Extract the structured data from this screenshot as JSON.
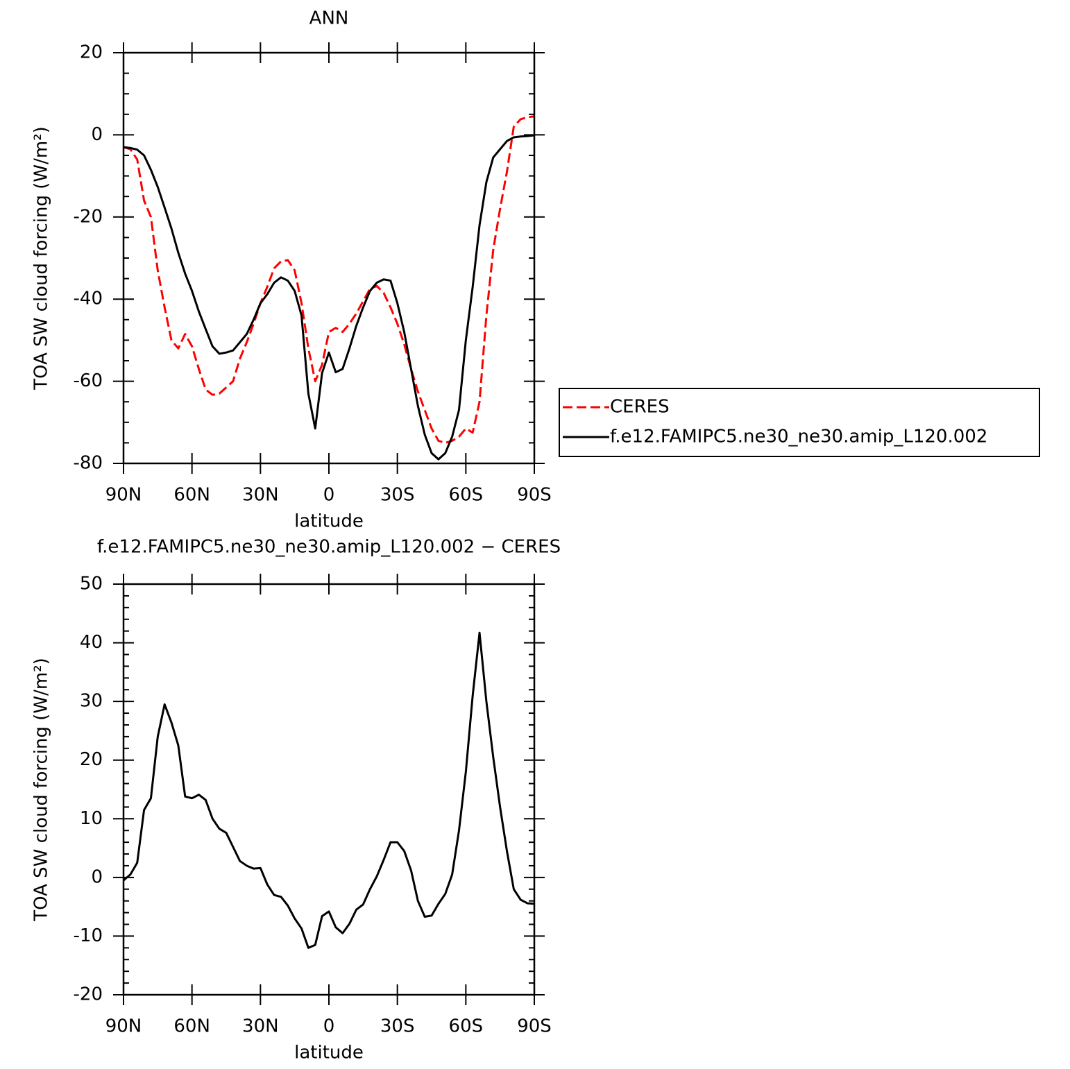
{
  "chart_data": [
    {
      "type": "line",
      "title": "ANN",
      "xlabel": "latitude",
      "ylabel": "TOA SW cloud forcing (W/m²)",
      "x": [
        90,
        87,
        84,
        81,
        78,
        75,
        72,
        69,
        66,
        63,
        60,
        57,
        54,
        51,
        48,
        45,
        42,
        39,
        36,
        33,
        30,
        27,
        24,
        21,
        18,
        15,
        12,
        9,
        6,
        3,
        0,
        -3,
        -6,
        -9,
        -12,
        -15,
        -18,
        -21,
        -24,
        -27,
        -30,
        -33,
        -36,
        -39,
        -42,
        -45,
        -48,
        -51,
        -54,
        -57,
        -60,
        -63,
        -66,
        -69,
        -72,
        -75,
        -78,
        -81,
        -84,
        -87,
        -90
      ],
      "xlim": [
        90,
        -90
      ],
      "xticks": [
        {
          "value": 90,
          "label": "90N"
        },
        {
          "value": 60,
          "label": "60N"
        },
        {
          "value": 30,
          "label": "30N"
        },
        0,
        {
          "value": -30,
          "label": "30S"
        },
        {
          "value": -60,
          "label": "60S"
        },
        {
          "value": -90,
          "label": "90S"
        }
      ],
      "ylim": [
        -80,
        20
      ],
      "yticks": [
        -80,
        -60,
        -40,
        -20,
        0,
        20
      ],
      "yminorticks": [
        -75,
        -70,
        -65,
        -55,
        -50,
        -45,
        -35,
        -30,
        -25,
        -15,
        -10,
        -5,
        5,
        10,
        15
      ],
      "legend": "outside right",
      "series": [
        {
          "name": "CERES",
          "color": "#ff0000",
          "dash": "dashed",
          "values": [
            -3,
            -3.5,
            -6,
            -16,
            -20,
            -33,
            -42,
            -50,
            -52,
            -48.5,
            -51.5,
            -57,
            -62,
            -63.3,
            -63,
            -61.5,
            -60,
            -54.5,
            -50.5,
            -46,
            -41,
            -37,
            -32.5,
            -30.8,
            -30.5,
            -33,
            -41,
            -52,
            -60,
            -56,
            -48,
            -47,
            -48,
            -46,
            -43.5,
            -40.5,
            -37.5,
            -36.8,
            -38.5,
            -42,
            -46,
            -51,
            -57,
            -62.5,
            -67,
            -71.5,
            -74.5,
            -75,
            -74.5,
            -73.5,
            -71.5,
            -72.5,
            -65,
            -44,
            -28,
            -18,
            -9,
            2,
            3.8,
            4.3,
            4.5
          ]
        },
        {
          "name": "f.e12.FAMIPC5.ne30_ne30.amip_L120.002",
          "color": "#000000",
          "dash": "solid",
          "values": [
            -3,
            -3.2,
            -3.6,
            -5,
            -8.5,
            -12.7,
            -17.7,
            -22.8,
            -28.7,
            -33.8,
            -38,
            -43,
            -47.3,
            -51.5,
            -53.3,
            -53,
            -52.5,
            -50.5,
            -48.5,
            -45,
            -41,
            -38.8,
            -36,
            -34.7,
            -35.5,
            -38,
            -44,
            -63,
            -71.5,
            -58,
            -53,
            -57.8,
            -57,
            -52,
            -46.5,
            -42,
            -38,
            -36,
            -35.2,
            -35.5,
            -41,
            -48,
            -57,
            -66,
            -73,
            -77.5,
            -79,
            -77.5,
            -73.5,
            -67,
            -50,
            -37,
            -22,
            -11.5,
            -5.5,
            -3.5,
            -1.5,
            -0.6,
            -0.4,
            -0.3,
            -0.1
          ]
        }
      ]
    },
    {
      "type": "line",
      "title": "f.e12.FAMIPC5.ne30_ne30.amip_L120.002 − CERES",
      "xlabel": "latitude",
      "ylabel": "TOA SW cloud forcing (W/m²)",
      "x": [
        90,
        87,
        84,
        81,
        78,
        75,
        72,
        69,
        66,
        63,
        60,
        57,
        54,
        51,
        48,
        45,
        42,
        39,
        36,
        33,
        30,
        27,
        24,
        21,
        18,
        15,
        12,
        9,
        6,
        3,
        0,
        -3,
        -6,
        -9,
        -12,
        -15,
        -18,
        -21,
        -24,
        -27,
        -30,
        -33,
        -36,
        -39,
        -42,
        -45,
        -48,
        -51,
        -54,
        -57,
        -60,
        -63,
        -66,
        -69,
        -72,
        -75,
        -78,
        -81,
        -84,
        -87,
        -90
      ],
      "xlim": [
        90,
        -90
      ],
      "xticks": [
        {
          "value": 90,
          "label": "90N"
        },
        {
          "value": 60,
          "label": "60N"
        },
        {
          "value": 30,
          "label": "30N"
        },
        0,
        {
          "value": -30,
          "label": "30S"
        },
        {
          "value": -60,
          "label": "60S"
        },
        {
          "value": -90,
          "label": "90S"
        }
      ],
      "ylim": [
        -20,
        50
      ],
      "yticks": [
        -20,
        -10,
        0,
        10,
        20,
        30,
        40,
        50
      ],
      "yminorticks": [
        -18,
        -16,
        -14,
        -12,
        -8,
        -6,
        -4,
        -2,
        2,
        4,
        6,
        8,
        12,
        14,
        16,
        18,
        22,
        24,
        26,
        28,
        32,
        34,
        36,
        38,
        42,
        44,
        46,
        48
      ],
      "series": [
        {
          "color": "#000000",
          "dash": "solid",
          "values": [
            -0.5,
            0.5,
            2.5,
            11.5,
            13.5,
            24,
            29.5,
            26.4,
            22.5,
            13.8,
            13.5,
            14.1,
            13.2,
            10,
            8.3,
            7.6,
            5.2,
            2.8,
            2,
            1.5,
            1.6,
            -1.2,
            -3,
            -3.3,
            -4.8,
            -7,
            -8.7,
            -12,
            -11.5,
            -6.6,
            -5.8,
            -8.5,
            -9.5,
            -7.9,
            -5.5,
            -4.6,
            -2,
            0.2,
            3,
            6,
            6,
            4.5,
            1.2,
            -4,
            -6.7,
            -6.5,
            -4.5,
            -2.8,
            0.5,
            8,
            18,
            31,
            41.7,
            30,
            20.5,
            12,
            4.5,
            -2,
            -3.8,
            -4.4,
            -4.5
          ]
        }
      ]
    }
  ]
}
